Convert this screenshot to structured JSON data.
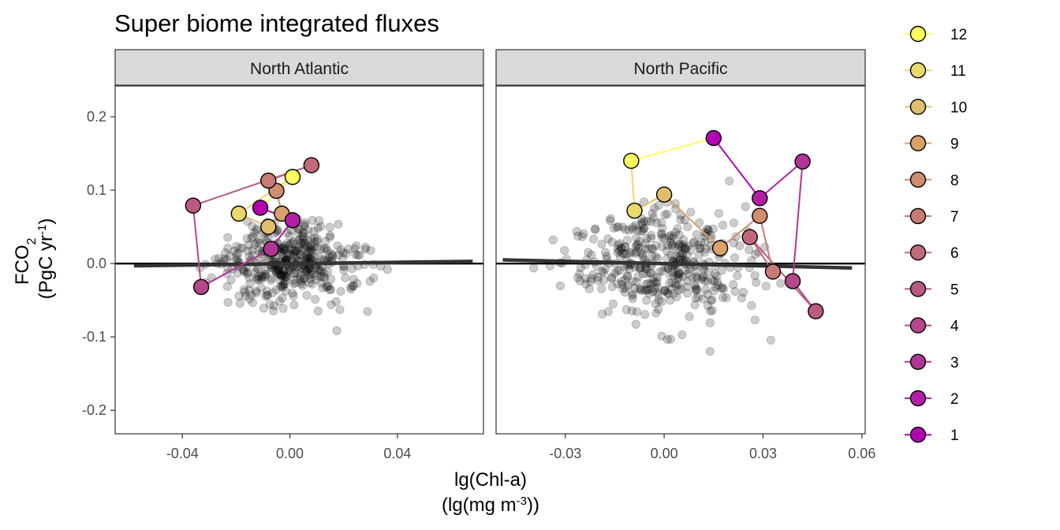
{
  "chart_data": {
    "type": "scatter",
    "title": "Super biome integrated fluxes",
    "ylabel_main": "FCO",
    "ylabel_sub": "2",
    "ylabel_units_pre": "(PgC yr",
    "ylabel_units_sup": "-1",
    "ylabel_units_post": ")",
    "xlabel_main": "lg(Chl-a)",
    "xlabel_units_pre": "(lg(mg m",
    "xlabel_units_sup": "-3",
    "xlabel_units_post": "))",
    "legend": [
      "12",
      "11",
      "10",
      "9",
      "8",
      "7",
      "6",
      "5",
      "4",
      "3",
      "2",
      "1"
    ],
    "month_colors": {
      "1": "#b400b4",
      "2": "#b21fa6",
      "3": "#b03596",
      "4": "#b4488b",
      "5": "#ba5a82",
      "6": "#c0697b",
      "7": "#c87b75",
      "8": "#d08d6f",
      "9": "#d8a26a",
      "10": "#e0be6b",
      "11": "#ead86c",
      "12": "#ffff60"
    },
    "panels": [
      {
        "name": "North Atlantic",
        "xlim": [
          -0.065,
          0.072
        ],
        "ylim": [
          -0.232,
          0.242
        ],
        "xticks": [
          -0.04,
          0.0,
          0.04
        ],
        "xtick_labels": [
          "-0.04",
          "0.00",
          "0.04"
        ],
        "yticks": [
          -0.2,
          -0.1,
          0.0,
          0.1,
          0.2
        ],
        "ytick_labels": [
          "-0.2",
          "-0.1",
          "0.0",
          "0.1",
          "0.2"
        ],
        "trend": {
          "x": [
            -0.058,
            0.068
          ],
          "y": [
            -0.003,
            0.003
          ]
        },
        "months": [
          {
            "month": 1,
            "x": -0.011,
            "y": 0.076
          },
          {
            "month": 2,
            "x": 0.001,
            "y": 0.059
          },
          {
            "month": 3,
            "x": -0.007,
            "y": 0.02
          },
          {
            "month": 4,
            "x": -0.033,
            "y": -0.032
          },
          {
            "month": 5,
            "x": -0.036,
            "y": 0.079
          },
          {
            "month": 6,
            "x": 0.008,
            "y": 0.134
          },
          {
            "month": 7,
            "x": -0.008,
            "y": 0.113
          },
          {
            "month": 8,
            "x": -0.005,
            "y": 0.099
          },
          {
            "month": 9,
            "x": -0.003,
            "y": 0.068
          },
          {
            "month": 10,
            "x": -0.008,
            "y": 0.05
          },
          {
            "month": 11,
            "x": -0.019,
            "y": 0.068
          },
          {
            "month": 12,
            "x": 0.001,
            "y": 0.118
          }
        ]
      },
      {
        "name": "North Pacific",
        "xlim": [
          -0.051,
          0.061
        ],
        "ylim": [
          -0.232,
          0.242
        ],
        "xticks": [
          -0.03,
          0.0,
          0.03,
          0.06
        ],
        "xtick_labels": [
          "-0.03",
          "0.00",
          "0.03",
          "0.06"
        ],
        "yticks": [
          -0.2,
          -0.1,
          0.0,
          0.1,
          0.2
        ],
        "trend": {
          "x": [
            -0.049,
            0.057
          ],
          "y": [
            0.005,
            -0.006
          ]
        },
        "months": [
          {
            "month": 1,
            "x": 0.015,
            "y": 0.171
          },
          {
            "month": 2,
            "x": 0.029,
            "y": 0.089
          },
          {
            "month": 3,
            "x": 0.042,
            "y": 0.139
          },
          {
            "month": 4,
            "x": 0.039,
            "y": -0.024
          },
          {
            "month": 5,
            "x": 0.046,
            "y": -0.065
          },
          {
            "month": 6,
            "x": 0.026,
            "y": 0.036
          },
          {
            "month": 7,
            "x": 0.033,
            "y": -0.011
          },
          {
            "month": 8,
            "x": 0.029,
            "y": 0.065
          },
          {
            "month": 9,
            "x": 0.017,
            "y": 0.021
          },
          {
            "month": 10,
            "x": 0.0,
            "y": 0.094
          },
          {
            "month": 11,
            "x": -0.009,
            "y": 0.072
          },
          {
            "month": 12,
            "x": -0.01,
            "y": 0.14
          }
        ]
      }
    ]
  }
}
